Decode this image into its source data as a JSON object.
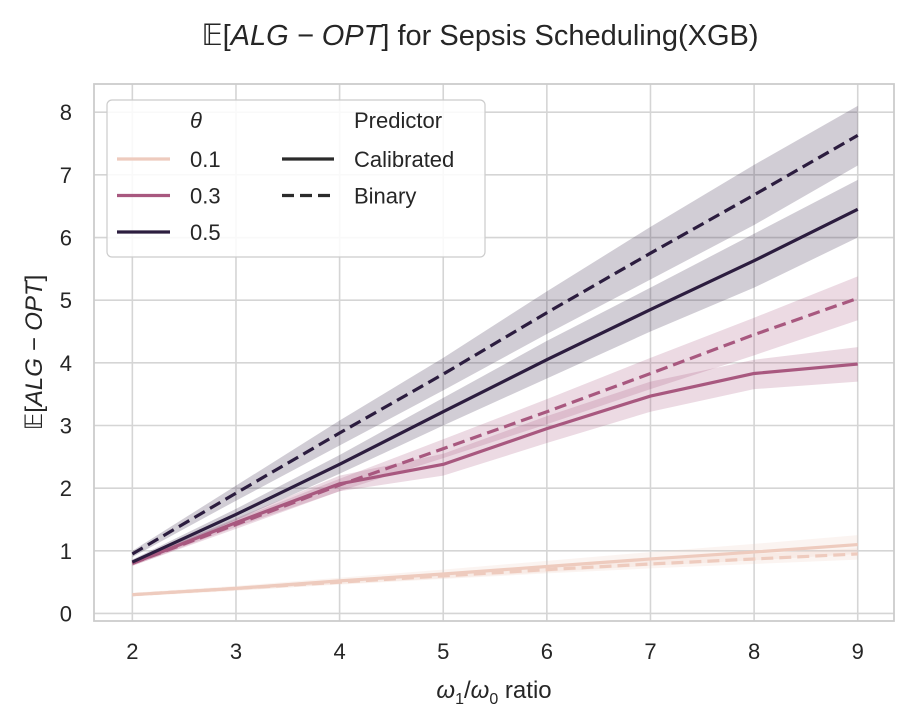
{
  "chart_data": {
    "type": "line",
    "title": {
      "prefix": "𝔼[",
      "math": "ALG − OPT",
      "suffix": "] for Sepsis Scheduling(XGB)"
    },
    "xlabel": {
      "w1": "ω",
      "sub1": "1",
      "slash": "/",
      "w0": "ω",
      "sub0": "0",
      "suffix": " ratio"
    },
    "ylabel": {
      "prefix": "𝔼[",
      "math": "ALG − OPT",
      "suffix": "]"
    },
    "x": [
      2,
      3,
      4,
      5,
      6,
      7,
      8,
      9
    ],
    "xticks": [
      "2",
      "3",
      "4",
      "5",
      "6",
      "7",
      "8",
      "9"
    ],
    "yticks": [
      "0",
      "1",
      "2",
      "3",
      "4",
      "5",
      "6",
      "7",
      "8"
    ],
    "xlim": [
      1.63,
      9.35
    ],
    "ylim": [
      -0.12,
      8.45
    ],
    "grid": true,
    "legend": {
      "placement": "top-left",
      "hue_title": "θ",
      "style_title": "Predictor",
      "hue_entries": [
        "0.1",
        "0.3",
        "0.5"
      ],
      "style_entries": [
        "Calibrated",
        "Binary"
      ]
    },
    "colors": {
      "0.1": "#eecbbe",
      "0.3": "#a8587f",
      "0.5": "#2c1d3f",
      "grid": "#d5d5d5",
      "frame": "#cccccc",
      "legend_style": "#2b2b2b"
    },
    "series": [
      {
        "theta": "0.1",
        "predictor": "Calibrated",
        "values": [
          0.3,
          0.4,
          0.52,
          0.63,
          0.75,
          0.87,
          0.98,
          1.1
        ],
        "ci_low": [
          0.27,
          0.36,
          0.47,
          0.56,
          0.66,
          0.76,
          0.85,
          0.95
        ],
        "ci_high": [
          0.33,
          0.44,
          0.57,
          0.7,
          0.84,
          0.98,
          1.11,
          1.25
        ]
      },
      {
        "theta": "0.1",
        "predictor": "Binary",
        "values": [
          0.3,
          0.4,
          0.5,
          0.6,
          0.7,
          0.79,
          0.87,
          0.95
        ],
        "ci_low": [
          0.28,
          0.37,
          0.46,
          0.55,
          0.64,
          0.72,
          0.79,
          0.86
        ],
        "ci_high": [
          0.32,
          0.43,
          0.54,
          0.65,
          0.76,
          0.86,
          0.95,
          1.04
        ]
      },
      {
        "theta": "0.3",
        "predictor": "Calibrated",
        "values": [
          0.8,
          1.45,
          2.07,
          2.38,
          2.95,
          3.47,
          3.83,
          3.98
        ],
        "ci_low": [
          0.76,
          1.38,
          1.95,
          2.2,
          2.72,
          3.22,
          3.58,
          3.7
        ],
        "ci_high": [
          0.84,
          1.52,
          2.2,
          2.55,
          3.15,
          3.7,
          4.05,
          4.25
        ]
      },
      {
        "theta": "0.3",
        "predictor": "Binary",
        "values": [
          0.8,
          1.42,
          2.05,
          2.63,
          3.22,
          3.83,
          4.45,
          5.03
        ],
        "ci_low": [
          0.76,
          1.35,
          1.95,
          2.48,
          3.02,
          3.58,
          4.12,
          4.68
        ],
        "ci_high": [
          0.84,
          1.5,
          2.15,
          2.78,
          3.42,
          4.08,
          4.72,
          5.38
        ]
      },
      {
        "theta": "0.5",
        "predictor": "Calibrated",
        "values": [
          0.82,
          1.58,
          2.38,
          3.22,
          4.05,
          4.85,
          5.63,
          6.45
        ],
        "ci_low": [
          0.78,
          1.49,
          2.23,
          3.0,
          3.75,
          4.5,
          5.2,
          6.0
        ],
        "ci_high": [
          0.86,
          1.67,
          2.53,
          3.44,
          4.35,
          5.2,
          6.06,
          6.92
        ]
      },
      {
        "theta": "0.5",
        "predictor": "Binary",
        "values": [
          0.95,
          1.92,
          2.88,
          3.82,
          4.8,
          5.75,
          6.68,
          7.63
        ],
        "ci_low": [
          0.9,
          1.8,
          2.68,
          3.56,
          4.46,
          5.33,
          6.2,
          7.15
        ],
        "ci_high": [
          1.0,
          2.04,
          3.08,
          4.08,
          5.14,
          6.17,
          7.16,
          8.1
        ]
      }
    ]
  }
}
